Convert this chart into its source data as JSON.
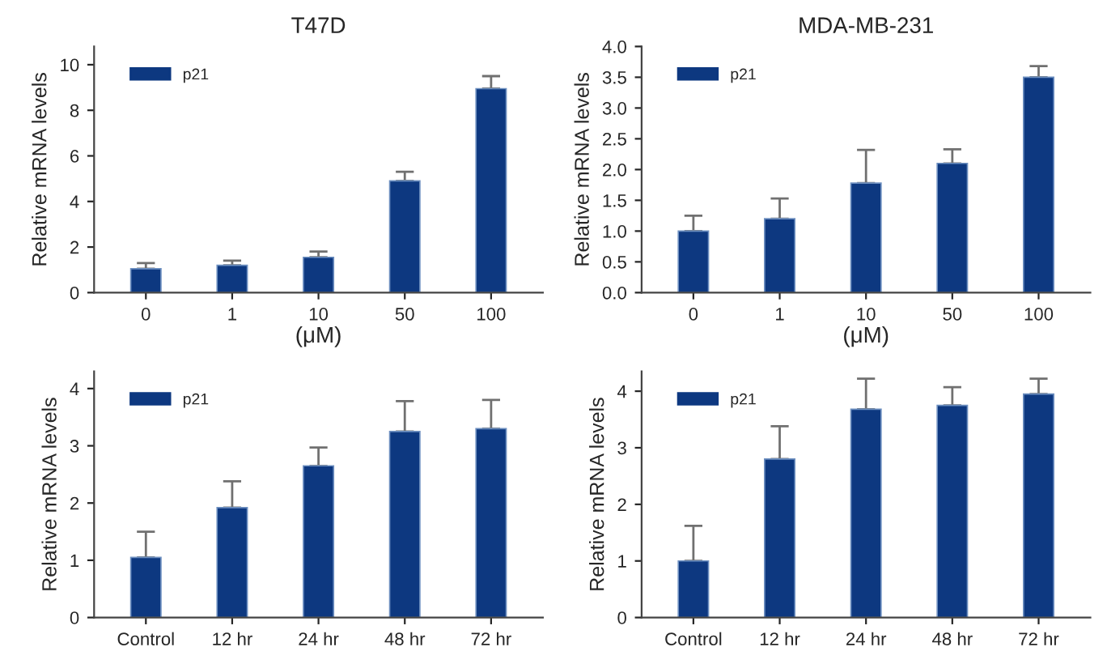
{
  "chart_data": [
    {
      "type": "bar",
      "title": "T47D",
      "xlabel": "(μM)",
      "ylabel": "Relative mRNA levels",
      "categories": [
        "0",
        "1",
        "10",
        "50",
        "100"
      ],
      "series": [
        {
          "name": "p21",
          "color": "#0d3880",
          "values": [
            1.05,
            1.2,
            1.55,
            4.9,
            8.95
          ],
          "errors": [
            [
              1.05,
              1.3
            ],
            [
              1.2,
              1.4
            ],
            [
              1.55,
              1.8
            ],
            [
              4.9,
              5.3
            ],
            [
              8.95,
              9.5
            ]
          ]
        }
      ],
      "ylim": [
        0,
        10.8
      ],
      "yticks": [
        0,
        2,
        4,
        6,
        8,
        10
      ],
      "grid": false,
      "legend": "top left"
    },
    {
      "type": "bar",
      "title": "MDA-MB-231",
      "xlabel": "(μM)",
      "ylabel": "Relative mRNA levels",
      "categories": [
        "0",
        "1",
        "10",
        "50",
        "100"
      ],
      "series": [
        {
          "name": "p21",
          "color": "#0d3880",
          "values": [
            1.0,
            1.2,
            1.78,
            2.1,
            3.5
          ],
          "errors": [
            [
              1.0,
              1.25
            ],
            [
              1.2,
              1.53
            ],
            [
              1.78,
              2.32
            ],
            [
              2.1,
              2.33
            ],
            [
              3.5,
              3.68
            ]
          ]
        }
      ],
      "ylim": [
        0,
        4.0
      ],
      "yticks": [
        {
          "value": 0,
          "label": "0.0"
        },
        0.5,
        {
          "value": 1,
          "label": "1.0"
        },
        1.5,
        {
          "value": 2,
          "label": "2.0"
        },
        2.5,
        {
          "value": 3,
          "label": "3.0"
        },
        3.5,
        {
          "value": 4,
          "label": "4.0"
        }
      ],
      "grid": false,
      "legend": "top left"
    },
    {
      "type": "bar",
      "ylabel": "Relative mRNA levels",
      "categories": [
        "Control",
        "12 hr",
        "24 hr",
        "48 hr",
        "72 hr"
      ],
      "series": [
        {
          "name": "p21",
          "color": "#0d3880",
          "values": [
            1.05,
            1.92,
            2.65,
            3.25,
            3.3
          ],
          "errors": [
            [
              1.05,
              1.5
            ],
            [
              1.92,
              2.38
            ],
            [
              2.65,
              2.97
            ],
            [
              3.25,
              3.78
            ],
            [
              3.3,
              3.8
            ]
          ]
        }
      ],
      "ylim": [
        0,
        4.3
      ],
      "yticks": [
        0,
        1,
        2,
        3,
        4
      ],
      "grid": false,
      "legend": "top left"
    },
    {
      "type": "bar",
      "ylabel": "Relative mRNA levels",
      "categories": [
        "Control",
        "12 hr",
        "24 hr",
        "48 hr",
        "72 hr"
      ],
      "series": [
        {
          "name": "p21",
          "color": "#0d3880",
          "values": [
            1.0,
            2.8,
            3.68,
            3.75,
            3.95
          ],
          "errors": [
            [
              1.0,
              1.62
            ],
            [
              2.8,
              3.38
            ],
            [
              3.68,
              4.22
            ],
            [
              3.75,
              4.07
            ],
            [
              3.95,
              4.22
            ]
          ]
        }
      ],
      "ylim": [
        0,
        4.35
      ],
      "yticks": [
        0,
        1,
        2,
        3,
        4
      ],
      "grid": false,
      "legend": "top left"
    }
  ]
}
